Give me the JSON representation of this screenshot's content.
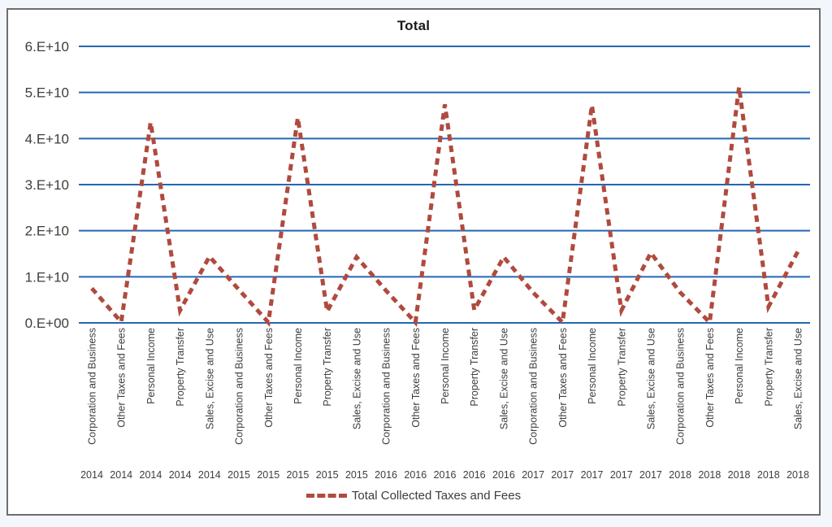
{
  "page": {
    "background_color": "#f3f6fa",
    "panel_border_color": "#6e6e6e"
  },
  "chart_data": {
    "type": "line",
    "title": "Total",
    "xlabel": "",
    "ylabel": "",
    "grid": true,
    "legend_position": "bottom",
    "line_style": "dashed",
    "colors": {
      "series_line": "#B04A3E",
      "gridline": "#2467B2",
      "axis_text": "#3d3d3d",
      "title_text": "#1a1a1a"
    },
    "y_axis": {
      "min": 0,
      "max": 60000000000,
      "step": 10000000000,
      "tick_labels": [
        "0.E+00",
        "1.E+10",
        "2.E+10",
        "3.E+10",
        "4.E+10",
        "5.E+10",
        "6.E+10"
      ]
    },
    "ylim": [
      0,
      60000000000
    ],
    "categories": [
      {
        "label": "Corporation and Business",
        "year": "2014"
      },
      {
        "label": "Other Taxes and Fees",
        "year": "2014"
      },
      {
        "label": "Personal Income",
        "year": "2014"
      },
      {
        "label": "Property Transfer",
        "year": "2014"
      },
      {
        "label": "Sales, Excise and Use",
        "year": "2014"
      },
      {
        "label": "Corporation and Business",
        "year": "2015"
      },
      {
        "label": "Other Taxes and Fees",
        "year": "2015"
      },
      {
        "label": "Personal Income",
        "year": "2015"
      },
      {
        "label": "Property Transfer",
        "year": "2015"
      },
      {
        "label": "Sales, Excise and Use",
        "year": "2015"
      },
      {
        "label": "Corporation and Business",
        "year": "2016"
      },
      {
        "label": "Other Taxes and Fees",
        "year": "2016"
      },
      {
        "label": "Personal Income",
        "year": "2016"
      },
      {
        "label": "Property Transfer",
        "year": "2016"
      },
      {
        "label": "Sales, Excise and Use",
        "year": "2016"
      },
      {
        "label": "Corporation and Business",
        "year": "2017"
      },
      {
        "label": "Other Taxes and Fees",
        "year": "2017"
      },
      {
        "label": "Personal Income",
        "year": "2017"
      },
      {
        "label": "Property Transfer",
        "year": "2017"
      },
      {
        "label": "Sales, Excise and Use",
        "year": "2017"
      },
      {
        "label": "Corporation and Business",
        "year": "2018"
      },
      {
        "label": "Other Taxes and Fees",
        "year": "2018"
      },
      {
        "label": "Personal Income",
        "year": "2018"
      },
      {
        "label": "Property Transfer",
        "year": "2018"
      },
      {
        "label": "Sales, Excise and Use",
        "year": "2018"
      }
    ],
    "series": [
      {
        "name": "Total Collected Taxes and Fees",
        "color": "#B04A3E",
        "dashed": true,
        "values": [
          7500000000,
          200000000,
          43500000000,
          2700000000,
          14400000000,
          7200000000,
          100000000,
          44500000000,
          2500000000,
          14300000000,
          7000000000,
          100000000,
          47400000000,
          2800000000,
          14300000000,
          6600000000,
          100000000,
          47200000000,
          2700000000,
          15200000000,
          6600000000,
          100000000,
          51200000000,
          3500000000,
          15500000000
        ]
      }
    ]
  }
}
